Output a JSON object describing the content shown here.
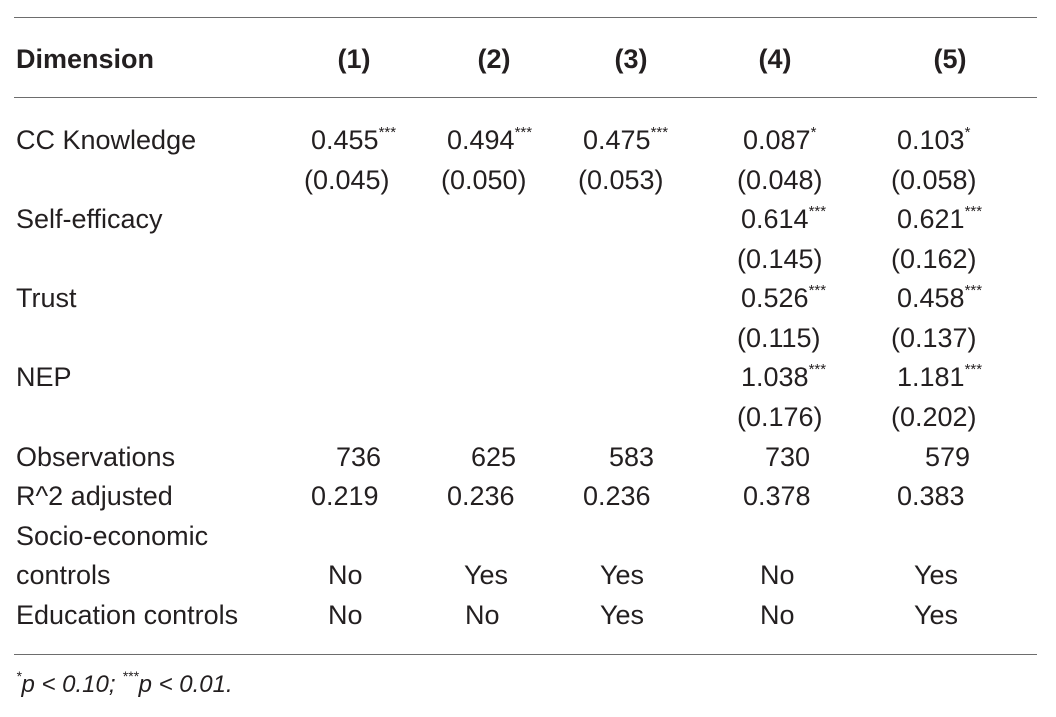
{
  "header": {
    "dimension": "Dimension",
    "columns": [
      "(1)",
      "(2)",
      "(3)",
      "(4)",
      "(5)"
    ]
  },
  "rows": {
    "cc_knowledge": {
      "label": "CC Knowledge",
      "coef": [
        "0.455",
        "0.494",
        "0.475",
        "0.087",
        "0.103"
      ],
      "stars": [
        "***",
        "***",
        "***",
        "*",
        "*"
      ],
      "se": [
        "(0.045)",
        "(0.050)",
        "(0.053)",
        "(0.048)",
        "(0.058)"
      ]
    },
    "self_efficacy": {
      "label": "Self-efficacy",
      "coef4": "0.614",
      "stars4": "***",
      "se4": "(0.145)",
      "coef5": "0.621",
      "stars5": "***",
      "se5": "(0.162)"
    },
    "trust": {
      "label": "Trust",
      "coef4": "0.526",
      "stars4": "***",
      "se4": "(0.115)",
      "coef5": "0.458",
      "stars5": "***",
      "se5": "(0.137)"
    },
    "nep": {
      "label": "NEP",
      "coef4": "1.038",
      "stars4": "***",
      "se4": "(0.176)",
      "coef5": "1.181",
      "stars5": "***",
      "se5": "(0.202)"
    },
    "observations": {
      "label": "Observations",
      "values": [
        "736",
        "625",
        "583",
        "730",
        "579"
      ]
    },
    "r2": {
      "label": "R^2 adjusted",
      "values": [
        "0.219",
        "0.236",
        "0.236",
        "0.378",
        "0.383"
      ]
    },
    "socio": {
      "label_line1": "Socio-economic",
      "label_line2": "controls",
      "values": [
        "No",
        "Yes",
        "Yes",
        "No",
        "Yes"
      ]
    },
    "education": {
      "label": "Education controls",
      "values": [
        "No",
        "No",
        "Yes",
        "No",
        "Yes"
      ]
    }
  },
  "footnote": {
    "star1": "*",
    "text1": "p < 0.10; ",
    "star3": "***",
    "text2": "p < 0.01."
  }
}
